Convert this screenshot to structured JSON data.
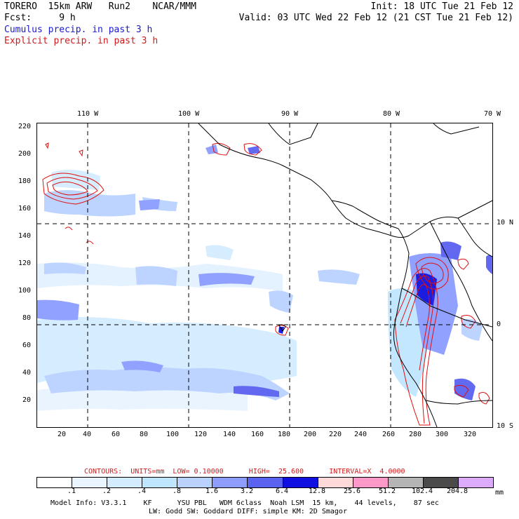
{
  "header": {
    "line1_left": "TORERO  15km ARW   Run2    NCAR/MMM",
    "line1_right": "Init: 18 UTC Tue 21 Feb 12",
    "line2_left": "Fcst:     9 h",
    "line2_right": "Valid: 03 UTC Wed 22 Feb 12 (21 CST Tue 21 Feb 12)",
    "legend_cumulus": "Cumulus precip. in past 3 h",
    "legend_explicit": "Explicit precip. in past 3 h"
  },
  "top_lon_labels": [
    "110 W",
    "100 W",
    "90 W",
    "80 W",
    "70 W"
  ],
  "right_lat_labels": [
    "10 N",
    "0",
    "10 S"
  ],
  "y_ticks": [
    "220",
    "200",
    "180",
    "160",
    "140",
    "120",
    "100",
    "80",
    "60",
    "40",
    "20"
  ],
  "x_ticks": [
    "20",
    "40",
    "60",
    "80",
    "100",
    "120",
    "140",
    "160",
    "180",
    "200",
    "220",
    "240",
    "260",
    "280",
    "300",
    "320"
  ],
  "contour_info": {
    "label": "CONTOURS:  UNITS=mm  LOW= 0.10000      HIGH=  25.600      INTERVAL=X  4.0000"
  },
  "colorbar": {
    "colors": [
      "#ffffff",
      "#e8f4ff",
      "#d4ecff",
      "#bfe6ff",
      "#b9d2ff",
      "#8c9cff",
      "#5a62f0",
      "#1010e0",
      "#ffd8d8",
      "#ff9ac8",
      "#b4b4b4",
      "#4a4a4a",
      "#dcaaff"
    ],
    "labels": [
      ".1",
      ".2",
      ".4",
      ".8",
      "1.6",
      "3.2",
      "6.4",
      "12.8",
      "25.6",
      "51.2",
      "102.4",
      "204.8"
    ],
    "unit": "mm"
  },
  "footer": {
    "line1": "Model Info: V3.3.1    KF      YSU PBL   WDM 6class  Noah LSM  15 km,    44 levels,    87 sec",
    "line2": "LW: Godd SW: Goddard DIFF: simple KM: 2D Smagor"
  }
}
